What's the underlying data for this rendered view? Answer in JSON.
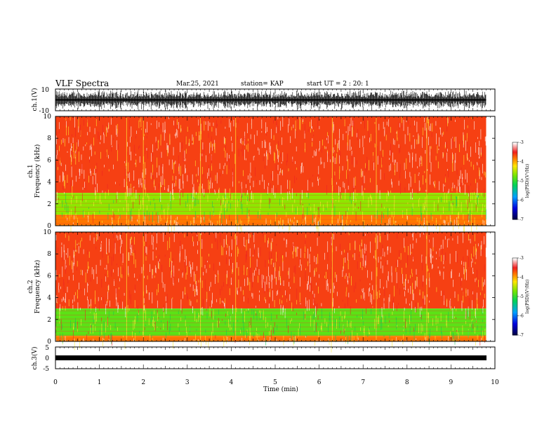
{
  "header": {
    "title": "VLF Spectra",
    "date": "Mar.25, 2021",
    "station": "station= KAP",
    "start": "start  UT =   2 : 20: 1"
  },
  "chart_data": [
    {
      "type": "line",
      "name": "ch1-waveform",
      "ylabel": "ch.1(V)",
      "ylim": [
        -10,
        10
      ],
      "yticks": [
        "10",
        "-10"
      ],
      "xlim": [
        0,
        10
      ]
    },
    {
      "type": "heatmap",
      "name": "ch1-spectrogram",
      "ylabel_top": "ch.1",
      "ylabel": "Frequency (kHz)",
      "ylim": [
        0,
        10
      ],
      "yticks": [
        "0",
        "2",
        "4",
        "6",
        "8",
        "10"
      ],
      "xlim": [
        0,
        10
      ],
      "colorbar": {
        "label": "log(PSD)(V²/Hz)",
        "range": [
          -7,
          -3
        ],
        "ticks": [
          "-3",
          "-4",
          "-5",
          "-6",
          "-7"
        ]
      },
      "bands": [
        {
          "from_khz": 3.0,
          "to_khz": 10.0,
          "level": -3.6
        },
        {
          "from_khz": 1.0,
          "to_khz": 3.0,
          "level": -4.6
        },
        {
          "from_khz": 0.0,
          "to_khz": 1.0,
          "level": -3.8
        }
      ]
    },
    {
      "type": "heatmap",
      "name": "ch2-spectrogram",
      "ylabel_top": "ch.2",
      "ylabel": "Frequency (kHz)",
      "ylim": [
        0,
        10
      ],
      "yticks": [
        "0",
        "2",
        "4",
        "6",
        "8",
        "10"
      ],
      "xlim": [
        0,
        10
      ],
      "colorbar": {
        "label": "log(PSD)(V²/Hz)",
        "range": [
          -7,
          -3
        ],
        "ticks": [
          "-3",
          "-4",
          "-5",
          "-6",
          "-7"
        ]
      },
      "bands": [
        {
          "from_khz": 3.0,
          "to_khz": 10.0,
          "level": -3.6
        },
        {
          "from_khz": 0.5,
          "to_khz": 3.0,
          "level": -4.8
        },
        {
          "from_khz": 0.0,
          "to_khz": 0.5,
          "level": -3.8
        }
      ]
    },
    {
      "type": "line",
      "name": "ch3-waveform",
      "ylabel": "ch.3(V)",
      "ylim": [
        -5,
        5
      ],
      "yticks": [
        "5",
        "0",
        "-5"
      ],
      "xlim": [
        0,
        10
      ]
    }
  ],
  "xaxis": {
    "label": "Time (min)",
    "ticks": [
      "0",
      "1",
      "2",
      "3",
      "4",
      "5",
      "6",
      "7",
      "8",
      "9",
      "10"
    ],
    "data_end": 9.8
  }
}
